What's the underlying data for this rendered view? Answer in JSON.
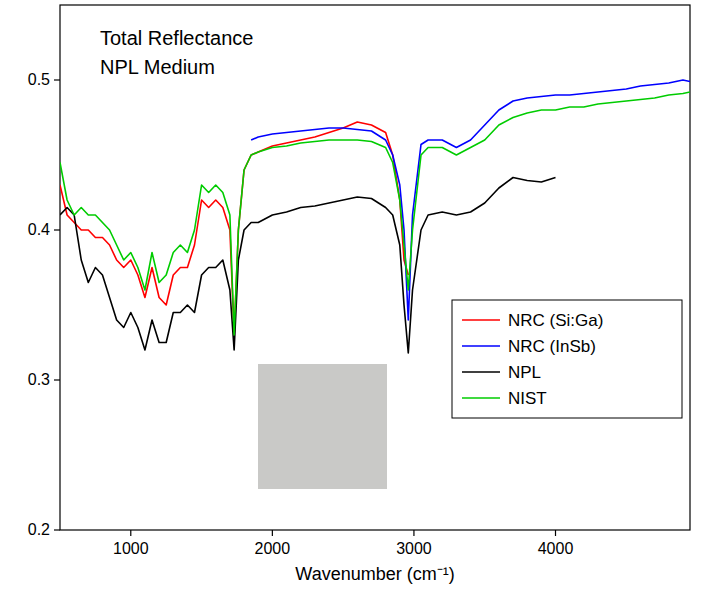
{
  "chart_data": {
    "type": "line",
    "title": "Total Reflectance",
    "subtitle": "NPL Medium",
    "x_label": "Wavenumber (cm⁻¹)",
    "xlim": [
      500,
      4950
    ],
    "ylim": [
      0.2,
      0.55
    ],
    "xticks": [
      1000,
      2000,
      3000,
      4000
    ],
    "yticks": [
      0.2,
      0.3,
      0.4,
      0.5
    ],
    "grid": false,
    "legend": "lower right",
    "x": [
      500,
      550,
      600,
      650,
      700,
      750,
      800,
      850,
      900,
      950,
      1000,
      1050,
      1100,
      1150,
      1200,
      1250,
      1300,
      1350,
      1400,
      1450,
      1500,
      1550,
      1600,
      1650,
      1700,
      1730,
      1760,
      1800,
      1850,
      1900,
      2000,
      2100,
      2200,
      2300,
      2400,
      2500,
      2600,
      2700,
      2800,
      2850,
      2900,
      2930,
      2960,
      2990,
      3050,
      3100,
      3200,
      3300,
      3400,
      3500,
      3600,
      3700,
      3800,
      3900,
      4000,
      4100,
      4200,
      4300,
      4400,
      4500,
      4600,
      4700,
      4800,
      4900,
      4950
    ],
    "series": [
      {
        "name": "NRC (Si:Ga)",
        "color": "#ff0000",
        "values": [
          0.43,
          0.41,
          0.405,
          0.4,
          0.4,
          0.395,
          0.395,
          0.39,
          0.38,
          0.375,
          0.38,
          0.37,
          0.355,
          0.375,
          0.355,
          0.35,
          0.37,
          0.375,
          0.375,
          0.39,
          0.42,
          0.415,
          0.42,
          0.415,
          0.4,
          0.33,
          0.4,
          0.44,
          0.45,
          0.452,
          0.456,
          0.458,
          0.46,
          0.462,
          0.465,
          0.468,
          0.472,
          0.47,
          0.465,
          0.45,
          0.42,
          0.38,
          0.37,
          null,
          null,
          null,
          null,
          null,
          null,
          null,
          null,
          null,
          null,
          null,
          null,
          null,
          null,
          null,
          null,
          null,
          null,
          null,
          null,
          null,
          null
        ]
      },
      {
        "name": "NRC (InSb)",
        "color": "#0000ff",
        "values": [
          null,
          null,
          null,
          null,
          null,
          null,
          null,
          null,
          null,
          null,
          null,
          null,
          null,
          null,
          null,
          null,
          null,
          null,
          null,
          null,
          null,
          null,
          null,
          null,
          null,
          null,
          null,
          null,
          0.46,
          0.462,
          0.464,
          0.465,
          0.466,
          0.467,
          0.468,
          0.468,
          0.467,
          0.466,
          0.46,
          0.45,
          0.43,
          0.4,
          0.34,
          0.41,
          0.457,
          0.46,
          0.46,
          0.455,
          0.46,
          0.47,
          0.48,
          0.486,
          0.488,
          0.489,
          0.49,
          0.49,
          0.491,
          0.492,
          0.493,
          0.494,
          0.496,
          0.497,
          0.498,
          0.5,
          0.499
        ]
      },
      {
        "name": "NPL",
        "color": "#000000",
        "values": [
          0.41,
          0.415,
          0.41,
          0.38,
          0.365,
          0.375,
          0.37,
          0.355,
          0.34,
          0.335,
          0.345,
          0.335,
          0.32,
          0.34,
          0.325,
          0.325,
          0.345,
          0.345,
          0.35,
          0.345,
          0.37,
          0.375,
          0.375,
          0.38,
          0.36,
          0.32,
          0.38,
          0.4,
          0.405,
          0.405,
          0.41,
          0.412,
          0.415,
          0.416,
          0.418,
          0.42,
          0.422,
          0.421,
          0.415,
          0.41,
          0.39,
          0.35,
          0.318,
          0.36,
          0.4,
          0.41,
          0.412,
          0.41,
          0.412,
          0.418,
          0.428,
          0.435,
          0.433,
          0.432,
          0.435,
          null,
          null,
          null,
          null,
          null,
          null,
          null,
          null,
          null,
          null
        ]
      },
      {
        "name": "NIST",
        "color": "#00cc00",
        "values": [
          0.445,
          0.42,
          0.41,
          0.415,
          0.41,
          0.41,
          0.405,
          0.4,
          0.39,
          0.38,
          0.385,
          0.375,
          0.36,
          0.385,
          0.365,
          0.37,
          0.385,
          0.39,
          0.385,
          0.4,
          0.43,
          0.425,
          0.43,
          0.425,
          0.41,
          0.33,
          0.4,
          0.44,
          0.45,
          0.452,
          0.455,
          0.456,
          0.458,
          0.459,
          0.46,
          0.46,
          0.46,
          0.459,
          0.455,
          0.445,
          0.42,
          0.39,
          0.36,
          0.4,
          0.45,
          0.455,
          0.455,
          0.45,
          0.455,
          0.46,
          0.47,
          0.475,
          0.478,
          0.48,
          0.48,
          0.482,
          0.482,
          0.484,
          0.485,
          0.486,
          0.487,
          0.488,
          0.49,
          0.491,
          0.492
        ]
      }
    ]
  }
}
